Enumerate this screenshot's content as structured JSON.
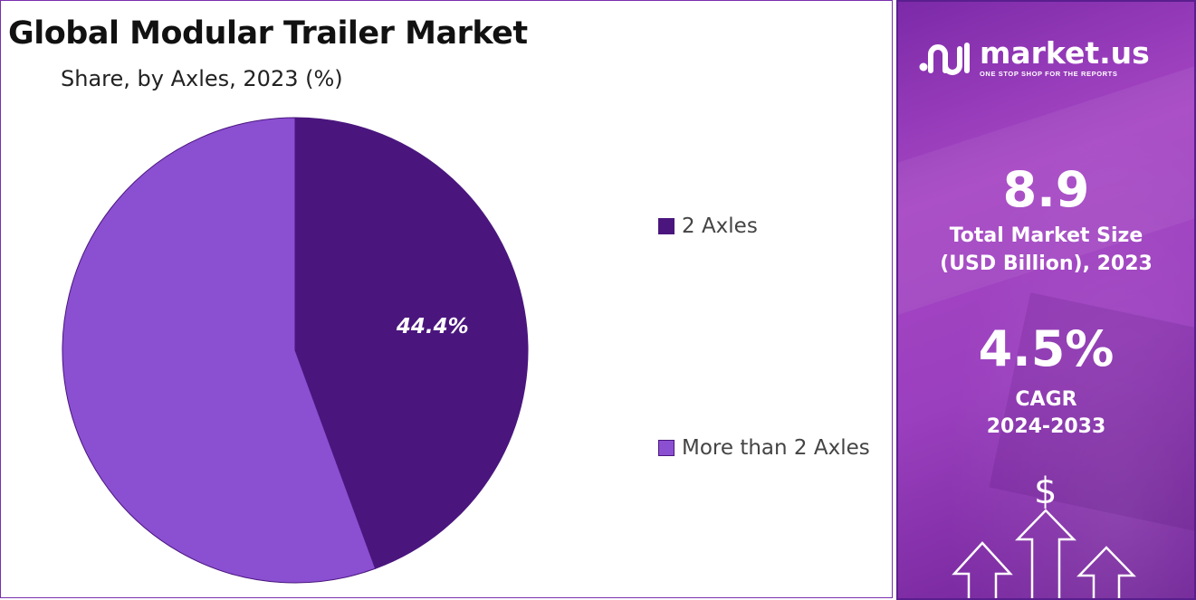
{
  "header": {
    "title": "Global Modular Trailer Market",
    "subtitle": "Share, by Axles, 2023 (%)"
  },
  "chart_data": {
    "type": "pie",
    "title": "Global Modular Trailer Market",
    "subtitle": "Share, by Axles, 2023 (%)",
    "categories": [
      "2 Axles",
      "More than 2 Axles"
    ],
    "values": [
      44.4,
      55.6
    ],
    "data_labels": [
      "44.4%",
      ""
    ],
    "colors": [
      "#4a167e",
      "#8b4fd2"
    ],
    "legend_position": "right"
  },
  "sidebar": {
    "brand_name": "market.us",
    "brand_tagline": "ONE STOP SHOP FOR THE REPORTS",
    "market_size_value": "8.9",
    "market_size_label_line1": "Total Market Size",
    "market_size_label_line2": "(USD Billion), 2023",
    "cagr_value": "4.5%",
    "cagr_label_line1": "CAGR",
    "cagr_label_line2": "2024-2033",
    "icons": [
      "market-us-logo-icon",
      "dollar-icon",
      "up-arrow-icon"
    ],
    "colors": {
      "accent": "#9b3fc0",
      "text": "#ffffff"
    }
  }
}
